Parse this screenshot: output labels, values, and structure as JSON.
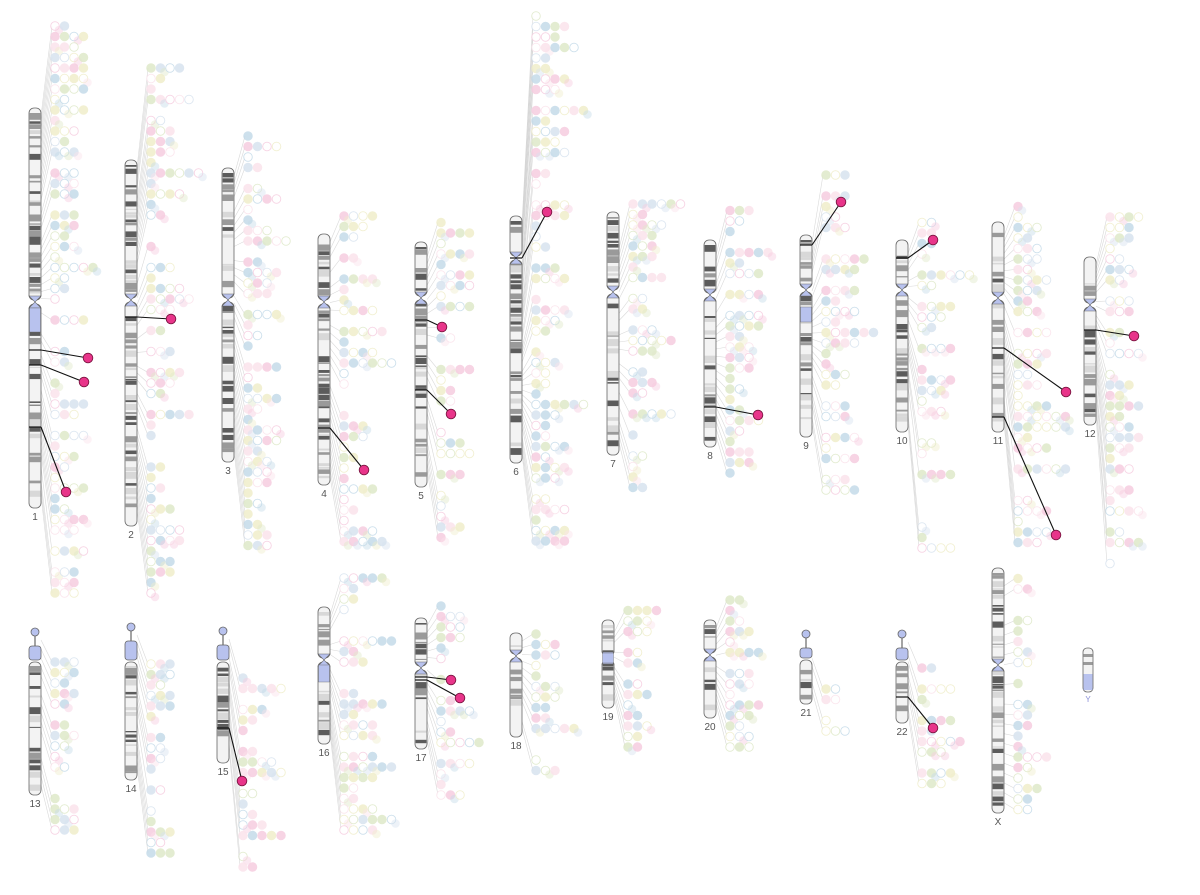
{
  "colors": {
    "background": "#ffffff",
    "highlight": "#e8358a",
    "highlight_stroke": "#7a1540",
    "centromere": "#b8c2ee",
    "acrocentric": "#b8c2ee",
    "band_dark": "#5c5c5c",
    "band_mid": "#9a9a9a",
    "band_light": "#d8d8d8",
    "chromosome_outline": "#666666",
    "connector_line": "#d0d0d0",
    "highlight_line": "#111111",
    "faint_palette": [
      "#c5dbe9",
      "#f6cde0",
      "#f0eecb",
      "#dfe9c9",
      "#d8e3ef",
      "#fbe3ec"
    ]
  },
  "chromosomes": [
    {
      "name": "1",
      "label": "1"
    },
    {
      "name": "2",
      "label": "2"
    },
    {
      "name": "3",
      "label": "3"
    },
    {
      "name": "4",
      "label": "4"
    },
    {
      "name": "5",
      "label": "5"
    },
    {
      "name": "6",
      "label": "6"
    },
    {
      "name": "7",
      "label": "7"
    },
    {
      "name": "8",
      "label": "8"
    },
    {
      "name": "9",
      "label": "9"
    },
    {
      "name": "10",
      "label": "10"
    },
    {
      "name": "11",
      "label": "11"
    },
    {
      "name": "12",
      "label": "12"
    },
    {
      "name": "13",
      "label": "13"
    },
    {
      "name": "14",
      "label": "14"
    },
    {
      "name": "15",
      "label": "15"
    },
    {
      "name": "16",
      "label": "16"
    },
    {
      "name": "17",
      "label": "17"
    },
    {
      "name": "18",
      "label": "18"
    },
    {
      "name": "19",
      "label": "19"
    },
    {
      "name": "20",
      "label": "20"
    },
    {
      "name": "21",
      "label": "21"
    },
    {
      "name": "22",
      "label": "22"
    },
    {
      "name": "X",
      "label": "X"
    },
    {
      "name": "Y",
      "label": "Y"
    }
  ],
  "highlighted_markers": [
    {
      "chromosome": "1",
      "count": 3
    },
    {
      "chromosome": "2",
      "count": 1
    },
    {
      "chromosome": "4",
      "count": 1
    },
    {
      "chromosome": "5",
      "count": 2
    },
    {
      "chromosome": "6",
      "count": 1
    },
    {
      "chromosome": "8",
      "count": 1
    },
    {
      "chromosome": "9",
      "count": 1
    },
    {
      "chromosome": "10",
      "count": 1
    },
    {
      "chromosome": "11",
      "count": 2
    },
    {
      "chromosome": "12",
      "count": 1
    },
    {
      "chromosome": "15",
      "count": 1
    },
    {
      "chromosome": "17",
      "count": 2
    },
    {
      "chromosome": "22",
      "count": 1
    }
  ]
}
